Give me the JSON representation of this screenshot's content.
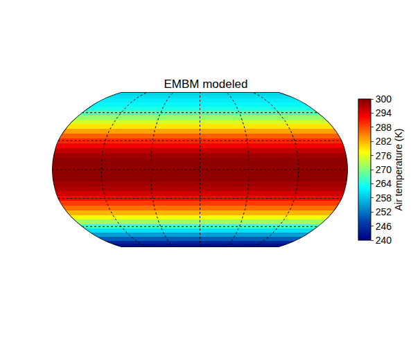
{
  "chart_data": {
    "type": "heatmap",
    "title": "EMBM modeled",
    "lat": [
      -90,
      -85,
      -80,
      -75,
      -70,
      -65,
      -60,
      -55,
      -50,
      -45,
      -40,
      -35,
      -30,
      -25,
      -20,
      -15,
      -10,
      -5,
      0,
      5,
      10,
      15,
      20,
      25,
      30,
      35,
      40,
      45,
      50,
      55,
      60,
      65,
      70,
      75,
      80,
      85,
      90
    ],
    "values": [
      240,
      242,
      245,
      250,
      255,
      260,
      266,
      272,
      277,
      282,
      286,
      289,
      292,
      295,
      297,
      298,
      299,
      299,
      299,
      299,
      299,
      298,
      296,
      293,
      290,
      287,
      283,
      279,
      275,
      271,
      267,
      264,
      262,
      261,
      260,
      259,
      259
    ],
    "color": "Jet",
    "colorbar": {
      "title": "Air temperature (K)",
      "range": [
        240,
        300
      ],
      "ticks": [
        240,
        246,
        252,
        258,
        264,
        270,
        276,
        282,
        288,
        294,
        300
      ]
    },
    "grid": true,
    "tick_labels": false
  }
}
